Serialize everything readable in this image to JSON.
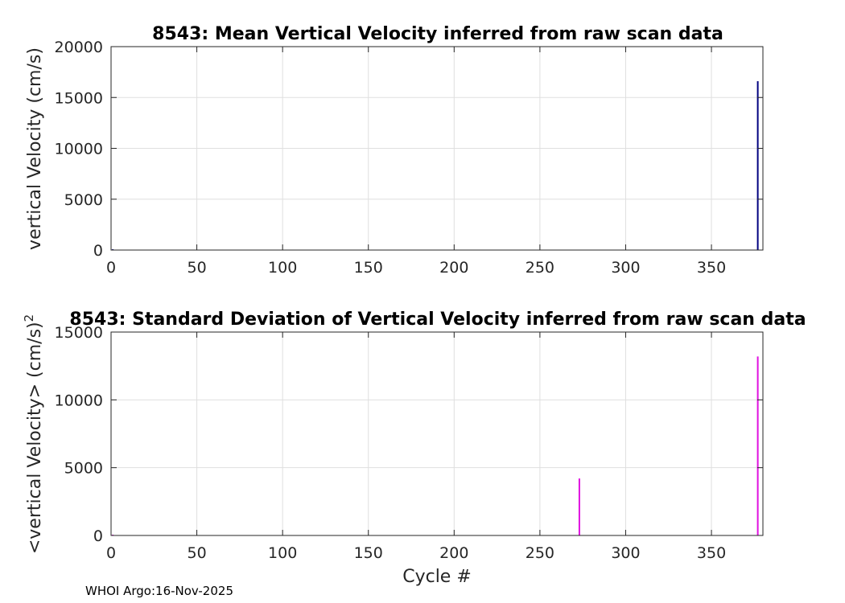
{
  "chart_data": [
    {
      "type": "bar",
      "title": "8543: Mean Vertical Velocity inferred from raw scan data",
      "ylabel": "vertical Velocity (cm/s)",
      "xlabel": "",
      "xlim": [
        0,
        380
      ],
      "ylim": [
        0,
        20000
      ],
      "xticks": [
        0,
        50,
        100,
        150,
        200,
        250,
        300,
        350
      ],
      "xtick_labels": [
        "0",
        "50",
        "100",
        "150",
        "200",
        "250",
        "300",
        "350"
      ],
      "yticks": [
        0,
        5000,
        10000,
        15000,
        20000
      ],
      "ytick_labels": [
        "0",
        "5000",
        "10000",
        "15000",
        "20000"
      ],
      "grid": true,
      "color": "#000080",
      "x": [
        1,
        273,
        377
      ],
      "values": [
        80,
        40,
        16600
      ]
    },
    {
      "type": "bar",
      "title": "8543: Standard Deviation of Vertical Velocity inferred from raw scan data",
      "ylabel": "<vertical Velocity> (cm/s)",
      "ylabel_superscript": "2",
      "xlabel": "Cycle #",
      "xlim": [
        0,
        380
      ],
      "ylim": [
        0,
        15000
      ],
      "xticks": [
        0,
        50,
        100,
        150,
        200,
        250,
        300,
        350
      ],
      "xtick_labels": [
        "0",
        "50",
        "100",
        "150",
        "200",
        "250",
        "300",
        "350"
      ],
      "yticks": [
        0,
        5000,
        10000,
        15000
      ],
      "ytick_labels": [
        "0",
        "5000",
        "10000",
        "15000"
      ],
      "grid": true,
      "color": "#e010e0",
      "x": [
        1,
        273,
        377
      ],
      "values": [
        60,
        4200,
        13200
      ]
    }
  ],
  "footer": "WHOI Argo:16-Nov-2025"
}
